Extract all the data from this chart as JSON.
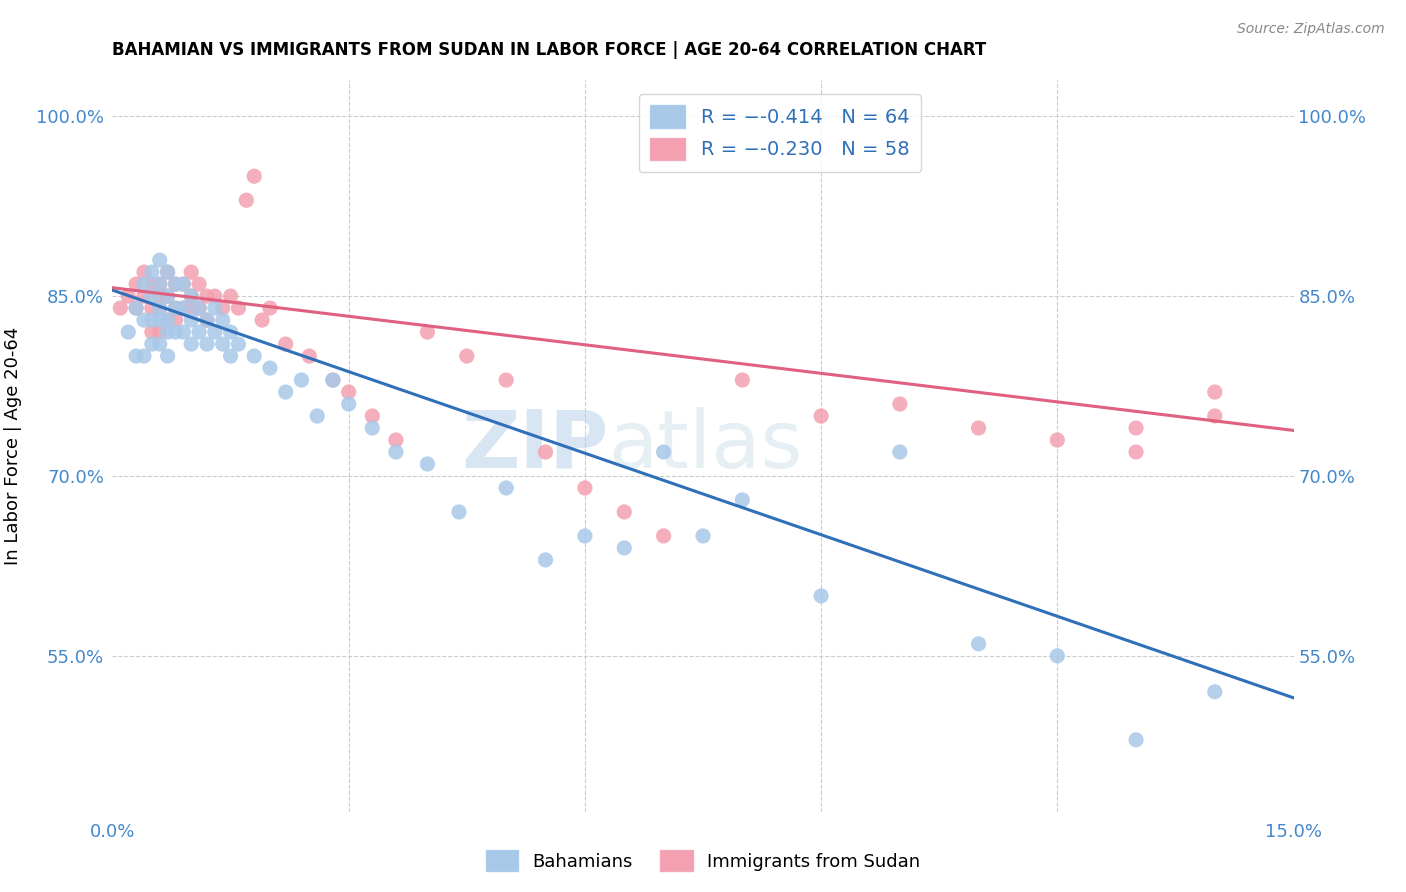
{
  "title": "BAHAMIAN VS IMMIGRANTS FROM SUDAN IN LABOR FORCE | AGE 20-64 CORRELATION CHART",
  "source": "Source: ZipAtlas.com",
  "ylabel": "In Labor Force | Age 20-64",
  "xlim": [
    0.0,
    0.15
  ],
  "ylim": [
    0.42,
    1.03
  ],
  "yticks": [
    0.55,
    0.7,
    0.85,
    1.0
  ],
  "ytick_labels": [
    "55.0%",
    "70.0%",
    "85.0%",
    "100.0%"
  ],
  "xtick_left_label": "0.0%",
  "xtick_right_label": "15.0%",
  "legend_blue_R": "-0.414",
  "legend_blue_N": "64",
  "legend_pink_R": "-0.230",
  "legend_pink_N": "58",
  "watermark": "ZIPatlas",
  "blue_color": "#a8c8e8",
  "pink_color": "#f4a0b0",
  "blue_line_color": "#3070b8",
  "pink_line_color": "#e06080",
  "legend_text_color": "#3070b8",
  "axis_color": "#4488cc",
  "grid_color": "#cccccc",
  "blue_trend_x": [
    0.0,
    0.15
  ],
  "blue_trend_y": [
    0.855,
    0.515
  ],
  "pink_trend_x": [
    0.0,
    0.15
  ],
  "pink_trend_y": [
    0.857,
    0.738
  ],
  "blue_scatter_x": [
    0.002,
    0.003,
    0.003,
    0.004,
    0.004,
    0.004,
    0.005,
    0.005,
    0.005,
    0.005,
    0.006,
    0.006,
    0.006,
    0.006,
    0.006,
    0.007,
    0.007,
    0.007,
    0.007,
    0.007,
    0.008,
    0.008,
    0.008,
    0.009,
    0.009,
    0.009,
    0.01,
    0.01,
    0.01,
    0.011,
    0.011,
    0.012,
    0.012,
    0.013,
    0.013,
    0.014,
    0.014,
    0.015,
    0.015,
    0.016,
    0.018,
    0.02,
    0.022,
    0.024,
    0.026,
    0.028,
    0.03,
    0.033,
    0.036,
    0.04,
    0.044,
    0.05,
    0.055,
    0.06,
    0.065,
    0.07,
    0.075,
    0.08,
    0.09,
    0.1,
    0.11,
    0.12,
    0.13,
    0.14
  ],
  "blue_scatter_y": [
    0.82,
    0.84,
    0.8,
    0.86,
    0.83,
    0.8,
    0.87,
    0.85,
    0.83,
    0.81,
    0.88,
    0.86,
    0.84,
    0.83,
    0.81,
    0.87,
    0.85,
    0.83,
    0.82,
    0.8,
    0.86,
    0.84,
    0.82,
    0.86,
    0.84,
    0.82,
    0.85,
    0.83,
    0.81,
    0.84,
    0.82,
    0.83,
    0.81,
    0.84,
    0.82,
    0.83,
    0.81,
    0.82,
    0.8,
    0.81,
    0.8,
    0.79,
    0.77,
    0.78,
    0.75,
    0.78,
    0.76,
    0.74,
    0.72,
    0.71,
    0.67,
    0.69,
    0.63,
    0.65,
    0.64,
    0.72,
    0.65,
    0.68,
    0.6,
    0.72,
    0.56,
    0.55,
    0.48,
    0.52
  ],
  "pink_scatter_x": [
    0.001,
    0.002,
    0.003,
    0.003,
    0.004,
    0.004,
    0.005,
    0.005,
    0.005,
    0.006,
    0.006,
    0.006,
    0.006,
    0.007,
    0.007,
    0.007,
    0.008,
    0.008,
    0.008,
    0.009,
    0.009,
    0.01,
    0.01,
    0.01,
    0.011,
    0.011,
    0.012,
    0.012,
    0.013,
    0.014,
    0.015,
    0.016,
    0.017,
    0.018,
    0.019,
    0.02,
    0.022,
    0.025,
    0.028,
    0.03,
    0.033,
    0.036,
    0.04,
    0.045,
    0.05,
    0.055,
    0.06,
    0.065,
    0.07,
    0.08,
    0.09,
    0.1,
    0.11,
    0.12,
    0.13,
    0.14,
    0.14,
    0.13
  ],
  "pink_scatter_y": [
    0.84,
    0.85,
    0.86,
    0.84,
    0.87,
    0.85,
    0.86,
    0.84,
    0.82,
    0.86,
    0.85,
    0.84,
    0.82,
    0.87,
    0.85,
    0.83,
    0.86,
    0.84,
    0.83,
    0.86,
    0.84,
    0.87,
    0.85,
    0.84,
    0.86,
    0.84,
    0.85,
    0.83,
    0.85,
    0.84,
    0.85,
    0.84,
    0.93,
    0.95,
    0.83,
    0.84,
    0.81,
    0.8,
    0.78,
    0.77,
    0.75,
    0.73,
    0.82,
    0.8,
    0.78,
    0.72,
    0.69,
    0.67,
    0.65,
    0.78,
    0.75,
    0.76,
    0.74,
    0.73,
    0.72,
    0.77,
    0.75,
    0.74
  ]
}
